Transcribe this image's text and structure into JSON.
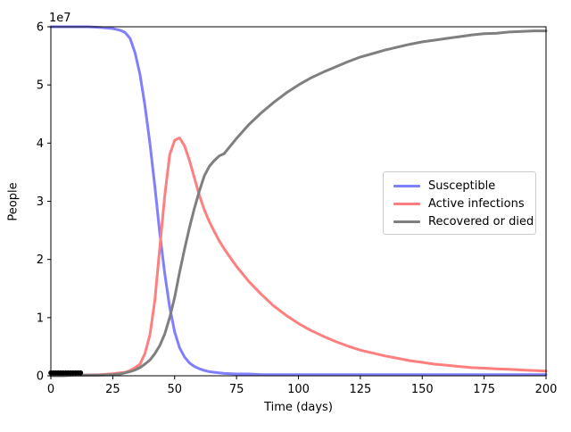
{
  "figure": {
    "xlabel": "Time (days)",
    "ylabel": "People",
    "offset_text": "1e7",
    "background_color": "#ffffff",
    "spine_color": "#000000"
  },
  "legend": {
    "position": "center right",
    "border_color": "#cccccc",
    "items": [
      {
        "label": "Susceptible",
        "color": "#7f7fff"
      },
      {
        "label": "Active infections",
        "color": "#ff7f7f"
      },
      {
        "label": "Recovered or died",
        "color": "#7f7f7f"
      }
    ]
  },
  "chart_data": {
    "type": "line",
    "title": "",
    "xlabel": "Time (days)",
    "ylabel": "People",
    "xlim": [
      0,
      200
    ],
    "ylim": [
      0,
      60000000
    ],
    "grid": false,
    "legend_position": "center right",
    "x_ticks": [
      0,
      25,
      50,
      75,
      100,
      125,
      150,
      175,
      200
    ],
    "x_tick_labels": [
      "0",
      "25",
      "50",
      "75",
      "100",
      "125",
      "150",
      "175",
      "200"
    ],
    "y_ticks": [
      0,
      10000000,
      20000000,
      30000000,
      40000000,
      50000000,
      60000000
    ],
    "y_tick_labels": [
      "0",
      "1",
      "2",
      "3",
      "4",
      "5",
      "6"
    ],
    "y_offset_label": "1e7",
    "line_width": 3,
    "x": [
      0,
      5,
      10,
      15,
      20,
      25,
      28,
      30,
      32,
      34,
      36,
      38,
      40,
      42,
      44,
      46,
      48,
      50,
      52,
      54,
      56,
      58,
      60,
      62,
      64,
      66,
      68,
      70,
      75,
      80,
      85,
      90,
      95,
      100,
      105,
      110,
      115,
      120,
      125,
      130,
      135,
      140,
      145,
      150,
      155,
      160,
      165,
      170,
      175,
      180,
      185,
      190,
      195,
      200
    ],
    "series": [
      {
        "name": "Susceptible",
        "color": "#7f7fff",
        "values": [
          60000000,
          60000000,
          60000000,
          60000000,
          59900000,
          59700000,
          59400000,
          59000000,
          58000000,
          55500000,
          51800000,
          46500000,
          40000000,
          32500000,
          24500000,
          17500000,
          11800000,
          7500000,
          4800000,
          3200000,
          2200000,
          1600000,
          1200000,
          900000,
          700000,
          600000,
          500000,
          400000,
          300000,
          300000,
          200000,
          200000,
          200000,
          200000,
          200000,
          200000,
          200000,
          200000,
          200000,
          200000,
          200000,
          200000,
          200000,
          200000,
          200000,
          200000,
          200000,
          200000,
          200000,
          200000,
          200000,
          200000,
          200000,
          200000
        ]
      },
      {
        "name": "Active infections",
        "color": "#ff7f7f",
        "values": [
          50000,
          70000,
          100000,
          140000,
          200000,
          350000,
          500000,
          600000,
          900000,
          1400000,
          2000000,
          3800000,
          7000000,
          13000000,
          22000000,
          31000000,
          38000000,
          40500000,
          40900000,
          39500000,
          37000000,
          34000000,
          31000000,
          28500000,
          26500000,
          24800000,
          23200000,
          21800000,
          18800000,
          16200000,
          14000000,
          12000000,
          10400000,
          9000000,
          7800000,
          6800000,
          5900000,
          5100000,
          4400000,
          3900000,
          3400000,
          3000000,
          2600000,
          2300000,
          2000000,
          1800000,
          1600000,
          1400000,
          1300000,
          1200000,
          1100000,
          1000000,
          900000,
          800000
        ]
      },
      {
        "name": "Recovered or died",
        "color": "#7f7f7f",
        "values": [
          0,
          0,
          100000,
          100000,
          100000,
          200000,
          300000,
          500000,
          700000,
          1000000,
          1400000,
          2000000,
          2700000,
          3800000,
          5200000,
          7200000,
          10000000,
          13500000,
          17800000,
          21800000,
          25500000,
          28800000,
          31800000,
          34400000,
          36000000,
          37000000,
          37800000,
          38200000,
          40800000,
          43200000,
          45200000,
          47000000,
          48600000,
          50000000,
          51200000,
          52200000,
          53100000,
          54000000,
          54800000,
          55400000,
          56000000,
          56500000,
          57000000,
          57400000,
          57700000,
          58000000,
          58300000,
          58600000,
          58800000,
          58900000,
          59100000,
          59200000,
          59300000,
          59300000
        ]
      }
    ],
    "scatter": {
      "name": "observed-black-markers",
      "color": "#000000",
      "marker": "dot",
      "x": [
        0,
        1,
        2,
        3,
        4,
        5,
        6,
        7,
        8,
        9,
        10,
        11,
        12
      ],
      "y": [
        500000,
        500000,
        500000,
        500000,
        500000,
        500000,
        500000,
        500000,
        500000,
        500000,
        500000,
        500000,
        500000
      ]
    }
  }
}
